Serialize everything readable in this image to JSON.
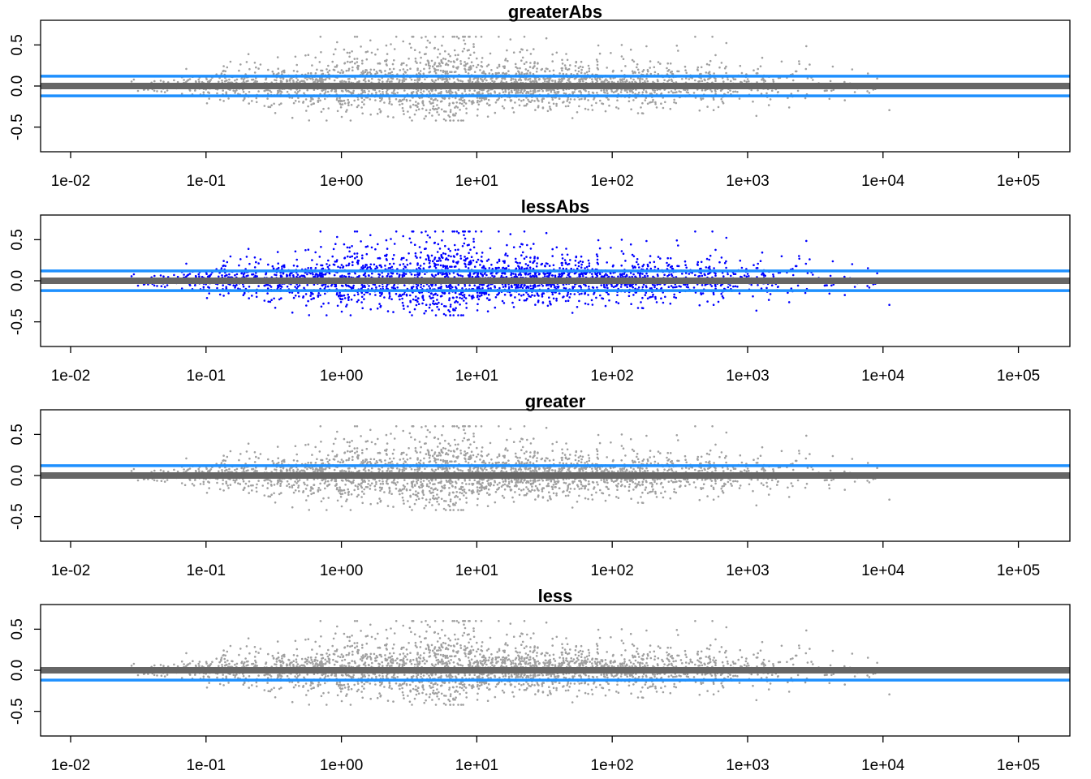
{
  "colors": {
    "points_gray": "#a0a0a0",
    "points_blue": "#0000ff",
    "center_line": "#666666",
    "threshold_line": "#1e90ff",
    "axis": "#000000"
  },
  "chart_data": [
    {
      "type": "scatter",
      "title": "greaterAbs",
      "xscale": "log",
      "xlim": [
        0.006,
        240000
      ],
      "ylim": [
        -0.8,
        0.8
      ],
      "xticks": [
        "1e-02",
        "1e-01",
        "1e+00",
        "1e+01",
        "1e+02",
        "1e+03",
        "1e+04",
        "1e+05"
      ],
      "yticks": [
        "-0.5",
        "0.0",
        "0.5"
      ],
      "grid": false,
      "point_color": "gray",
      "hlines": [
        0.12,
        -0.12
      ],
      "center_line": 0
    },
    {
      "type": "scatter",
      "title": "lessAbs",
      "xscale": "log",
      "xlim": [
        0.006,
        240000
      ],
      "ylim": [
        -0.8,
        0.8
      ],
      "xticks": [
        "1e-02",
        "1e-01",
        "1e+00",
        "1e+01",
        "1e+02",
        "1e+03",
        "1e+04",
        "1e+05"
      ],
      "yticks": [
        "-0.5",
        "0.0",
        "0.5"
      ],
      "grid": false,
      "point_color": "blue",
      "hlines": [
        0.12,
        -0.12
      ],
      "center_line": 0
    },
    {
      "type": "scatter",
      "title": "greater",
      "xscale": "log",
      "xlim": [
        0.006,
        240000
      ],
      "ylim": [
        -0.8,
        0.8
      ],
      "xticks": [
        "1e-02",
        "1e-01",
        "1e+00",
        "1e+01",
        "1e+02",
        "1e+03",
        "1e+04",
        "1e+05"
      ],
      "yticks": [
        "-0.5",
        "0.0",
        "0.5"
      ],
      "grid": false,
      "point_color": "gray",
      "hlines": [
        0.12
      ],
      "center_line": 0
    },
    {
      "type": "scatter",
      "title": "less",
      "xscale": "log",
      "xlim": [
        0.006,
        240000
      ],
      "ylim": [
        -0.8,
        0.8
      ],
      "xticks": [
        "1e-02",
        "1e-01",
        "1e+00",
        "1e+01",
        "1e+02",
        "1e+03",
        "1e+04",
        "1e+05"
      ],
      "yticks": [
        "-0.5",
        "0.0",
        "0.5"
      ],
      "grid": false,
      "point_color": "gray",
      "hlines": [
        -0.12
      ],
      "center_line": 0
    }
  ]
}
